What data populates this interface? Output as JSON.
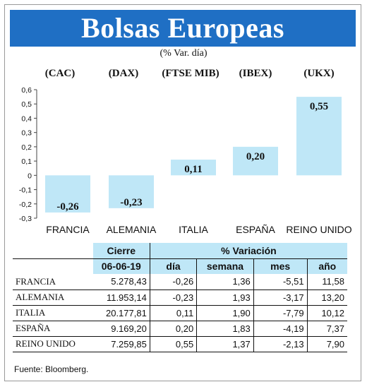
{
  "title": "Bolsas Europeas",
  "subtitle": "(% Var. día)",
  "chart_data": {
    "type": "bar",
    "indices": [
      "(CAC)",
      "(DAX)",
      "(FTSE MIB)",
      "(IBEX)",
      "(UKX)"
    ],
    "categories": [
      "FRANCIA",
      "ALEMANIA",
      "ITALIA",
      "ESPAÑA",
      "REINO UNIDO"
    ],
    "values": [
      -0.26,
      -0.23,
      0.11,
      0.2,
      0.55
    ],
    "value_labels": [
      "-0,26",
      "-0,23",
      "0,11",
      "0,20",
      "0,55"
    ],
    "ylim": [
      -0.3,
      0.6
    ],
    "yticks": [
      0.6,
      0.5,
      0.4,
      0.3,
      0.2,
      0.1,
      0,
      -0.1,
      -0.2,
      -0.3
    ],
    "ytick_labels": [
      "0,6",
      "0,5",
      "0,4",
      "0,3",
      "0,2",
      "0,1",
      "0",
      "-0,1",
      "-0,2",
      "-0,3"
    ],
    "bar_color": "#bfe7f7"
  },
  "table": {
    "header_cierre": "Cierre",
    "header_variacion": "% Variación",
    "date": "06-06-19",
    "sub_headers": [
      "día",
      "semana",
      "mes",
      "año"
    ],
    "rows": [
      {
        "name": "FRANCIA",
        "cierre": "5.278,43",
        "dia": "-0,26",
        "semana": "1,36",
        "mes": "-5,51",
        "ano": "11,58"
      },
      {
        "name": "ALEMANIA",
        "cierre": "11.953,14",
        "dia": "-0,23",
        "semana": "1,93",
        "mes": "-3,17",
        "ano": "13,20"
      },
      {
        "name": "ITALIA",
        "cierre": "20.177,81",
        "dia": "0,11",
        "semana": "1,90",
        "mes": "-7,79",
        "ano": "10,12"
      },
      {
        "name": "ESPAÑA",
        "cierre": "9.169,20",
        "dia": "0,20",
        "semana": "1,83",
        "mes": "-4,19",
        "ano": "7,37"
      },
      {
        "name": "REINO UNIDO",
        "cierre": "7.259,85",
        "dia": "0,55",
        "semana": "1,37",
        "mes": "-2,13",
        "ano": "7,90"
      }
    ]
  },
  "source": "Fuente: Bloomberg."
}
